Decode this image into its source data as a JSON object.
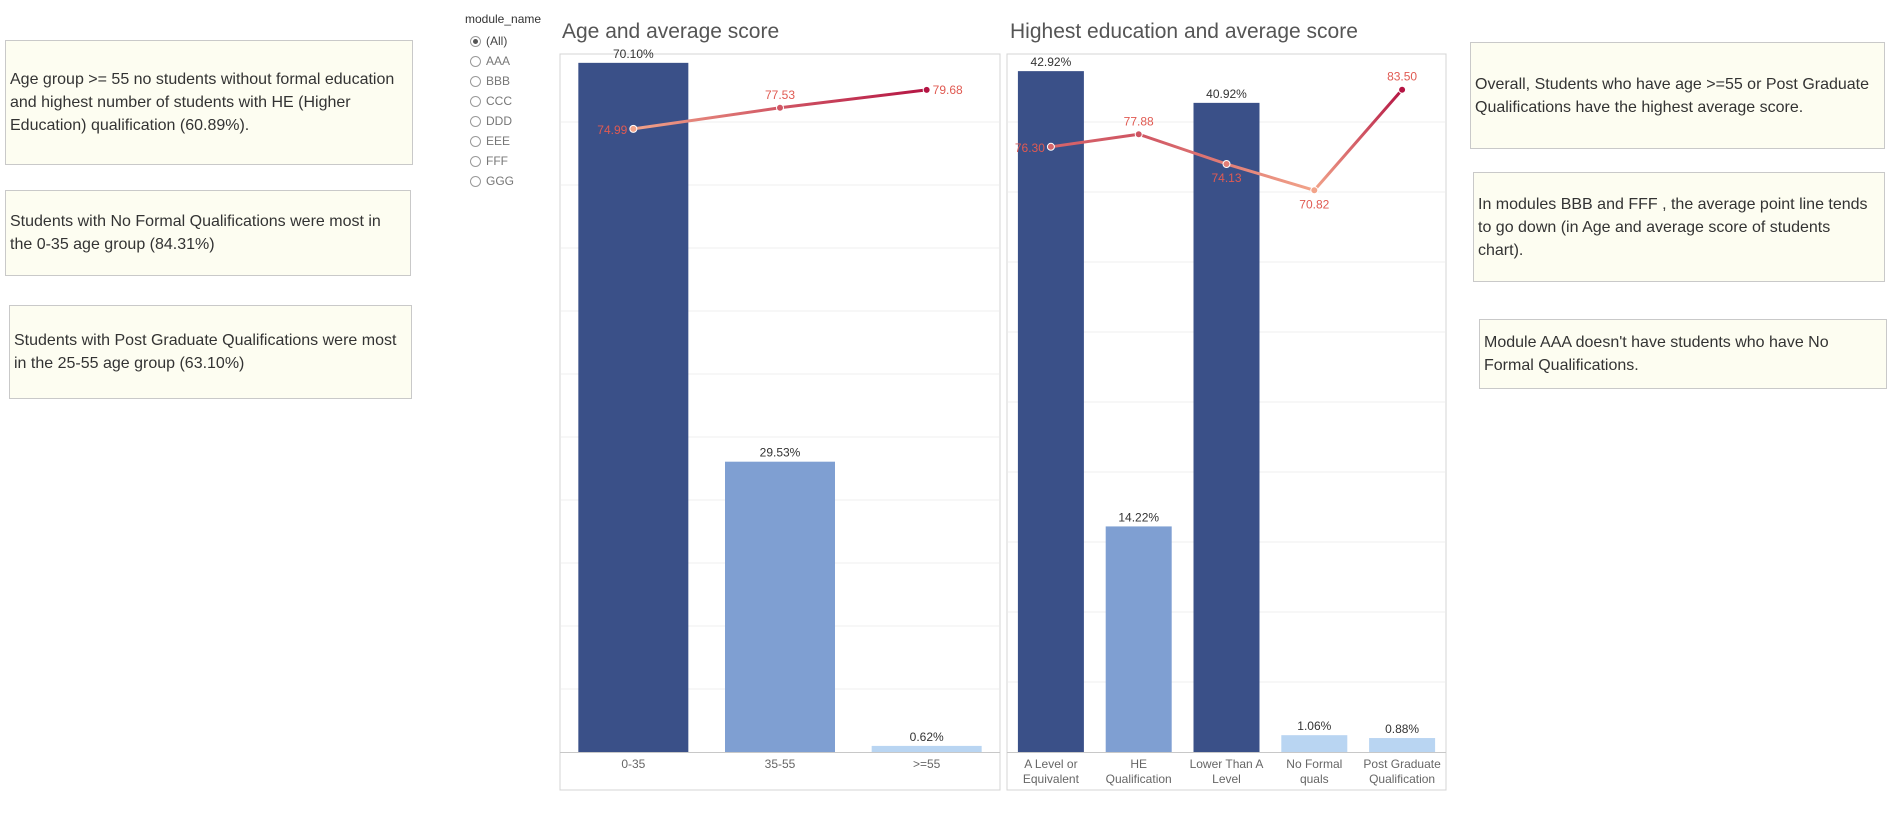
{
  "notes_left": [
    "Age group >= 55 no students without formal education and highest number of students with HE (Higher Education) qualification (60.89%).",
    "Students with No Formal Qualifications were most in the 0-35 age group (84.31%)",
    "Students with Post Graduate Qualifications were most in the 25-55 age group (63.10%)"
  ],
  "notes_right": [
    "Overall, Students who have age >=55 or Post Graduate Qualifications have the highest average score.",
    "In modules BBB and FFF , the average point line tends to go down (in Age and average score of students chart).",
    "Module AAA doesn't have students who have No Formal Qualifications."
  ],
  "filter": {
    "title": "module_name",
    "options": [
      "(All)",
      "AAA",
      "BBB",
      "CCC",
      "DDD",
      "EEE",
      "FFF",
      "GGG"
    ],
    "selected": "(All)"
  },
  "colors": {
    "bar_dark": "#3a5088",
    "bar_mid": "#7f9fd2",
    "bar_light": "#b9d5f2",
    "line_light": "#f2a48a",
    "line_dark": "#b41443",
    "score_label": "#e05a52"
  },
  "chart_data": [
    {
      "type": "bar",
      "title": "Age and average score",
      "categories": [
        "0-35",
        "35-55",
        ">=55"
      ],
      "series": [
        {
          "values": [
            70.1,
            29.53,
            0.62
          ],
          "labels": [
            "70.10%",
            "29.53%",
            "0.62%"
          ]
        },
        {
          "type": "line",
          "values": [
            74.99,
            77.53,
            79.68
          ],
          "labels": [
            "74.99",
            "77.53",
            "79.68"
          ]
        }
      ],
      "bar_ylim": [
        0,
        71
      ],
      "line_ylim": [
        0,
        84
      ]
    },
    {
      "type": "bar",
      "title": "Highest education and average score",
      "categories": [
        "A Level or Equivalent",
        "HE Qualification",
        "Lower Than A Level",
        "No Formal quals",
        "Post Graduate Qualification"
      ],
      "series": [
        {
          "values": [
            42.92,
            14.22,
            40.92,
            1.06,
            0.88
          ],
          "labels": [
            "42.92%",
            "14.22%",
            "40.92%",
            "1.06%",
            "0.88%"
          ]
        },
        {
          "type": "line",
          "values": [
            76.3,
            77.88,
            74.13,
            70.82,
            83.5
          ],
          "labels": [
            "76.30",
            "77.88",
            "74.13",
            "70.82",
            "83.50"
          ]
        }
      ],
      "bar_ylim": [
        0,
        44
      ],
      "line_ylim": [
        0,
        88
      ]
    }
  ]
}
